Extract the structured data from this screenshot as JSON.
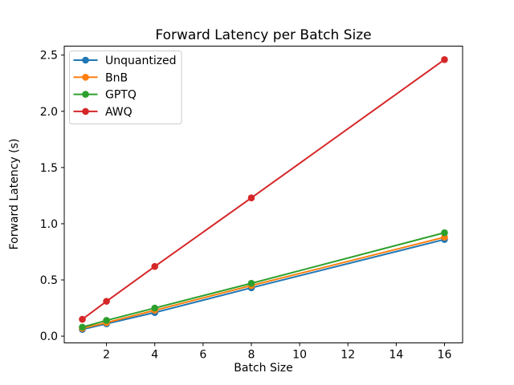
{
  "chart_data": {
    "type": "line",
    "title": "Forward Latency per Batch Size",
    "xlabel": "Batch Size",
    "ylabel": "Forward Latency (s)",
    "x": [
      1,
      2,
      4,
      8,
      16
    ],
    "series": [
      {
        "name": "Unquantized",
        "color": "#1f77b4",
        "values": [
          0.06,
          0.11,
          0.21,
          0.43,
          0.86
        ]
      },
      {
        "name": "BnB",
        "color": "#ff7f0e",
        "values": [
          0.07,
          0.12,
          0.23,
          0.45,
          0.88
        ]
      },
      {
        "name": "GPTQ",
        "color": "#2ca02c",
        "values": [
          0.08,
          0.14,
          0.25,
          0.47,
          0.92
        ]
      },
      {
        "name": "AWQ",
        "color": "#d62728",
        "values": [
          0.15,
          0.31,
          0.62,
          1.23,
          2.46
        ]
      }
    ],
    "marker": "o",
    "grid": false,
    "xticks": [
      2,
      4,
      6,
      8,
      10,
      12,
      14,
      16
    ],
    "xtick_labels": [
      "2",
      "4",
      "6",
      "8",
      "10",
      "12",
      "14",
      "16"
    ],
    "yticks": [
      0.0,
      0.5,
      1.0,
      1.5,
      2.0,
      2.5
    ],
    "ytick_labels": [
      "0.0",
      "0.5",
      "1.0",
      "1.5",
      "2.0",
      "2.5"
    ],
    "xlim": [
      0.25,
      16.75
    ],
    "ylim": [
      -0.06,
      2.58
    ],
    "legend": {
      "position": "upper left",
      "entries": [
        "Unquantized",
        "BnB",
        "GPTQ",
        "AWQ"
      ]
    },
    "colors": {
      "spine": "#000000",
      "background": "#ffffff",
      "legend_border": "#cccccc"
    }
  }
}
